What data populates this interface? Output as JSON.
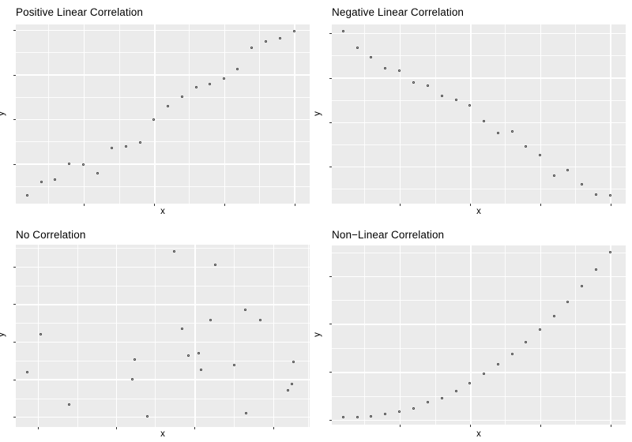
{
  "style": {
    "page_bg": "#FFFFFF",
    "panel_bg": "#EBEBEB",
    "grid_major": "#FFFFFF",
    "grid_minor": "#FFFFFF",
    "point_stroke": "#3A3A3A",
    "tick_color": "#333333",
    "title_color": "#000000"
  },
  "chart_data": [
    {
      "type": "scatter",
      "title": "Positive Linear Correlation",
      "xlabel": "x",
      "ylabel": "y",
      "point_shape": "open-circle",
      "axis_tick_labels": "none",
      "units": "percent of panel, y measured from bottom",
      "points": [
        [
          4.2,
          4.1
        ],
        [
          9.0,
          11.7
        ],
        [
          13.7,
          12.8
        ],
        [
          18.5,
          21.6
        ],
        [
          23.3,
          21.3
        ],
        [
          28.1,
          16.3
        ],
        [
          33.0,
          30.8
        ],
        [
          37.7,
          31.5
        ],
        [
          42.5,
          33.7
        ],
        [
          47.3,
          46.3
        ],
        [
          52.1,
          53.8
        ],
        [
          56.8,
          59.1
        ],
        [
          61.6,
          64.7
        ],
        [
          66.3,
          66.3
        ],
        [
          71.1,
          69.3
        ],
        [
          75.8,
          74.5
        ],
        [
          80.6,
          86.4
        ],
        [
          85.4,
          90.3
        ],
        [
          90.1,
          91.8
        ],
        [
          94.9,
          96.0
        ]
      ],
      "grid": {
        "x_major": [
          23.3,
          47.3,
          71.1,
          94.9
        ],
        "x_minor": [
          11.2,
          35.4,
          59.1,
          83.0
        ],
        "y_major": [
          96.8,
          71.8,
          46.9,
          22.0
        ],
        "y_minor": [
          84.3,
          59.4,
          34.5,
          9.5
        ]
      }
    },
    {
      "type": "scatter",
      "title": "Negative Linear Correlation",
      "xlabel": "x",
      "ylabel": "y",
      "point_shape": "open-circle",
      "axis_tick_labels": "none",
      "units": "percent of panel, y measured from bottom",
      "points": [
        [
          4.2,
          96.0
        ],
        [
          9.0,
          86.6
        ],
        [
          13.7,
          81.2
        ],
        [
          18.5,
          75.0
        ],
        [
          23.3,
          74.0
        ],
        [
          28.1,
          67.1
        ],
        [
          32.9,
          65.3
        ],
        [
          37.7,
          59.7
        ],
        [
          42.5,
          57.5
        ],
        [
          47.3,
          54.6
        ],
        [
          52.1,
          45.6
        ],
        [
          56.8,
          39.2
        ],
        [
          61.6,
          39.9
        ],
        [
          66.3,
          31.7
        ],
        [
          71.2,
          26.6
        ],
        [
          75.9,
          15.4
        ],
        [
          80.6,
          18.5
        ],
        [
          85.4,
          10.3
        ],
        [
          90.1,
          4.5
        ],
        [
          94.9,
          4.0
        ]
      ],
      "grid": {
        "x_major": [
          23.3,
          47.3,
          71.1,
          94.9
        ],
        "x_minor": [
          11.2,
          35.4,
          59.1,
          83.0
        ],
        "y_major": [
          95.0,
          70.0,
          45.2,
          20.5
        ],
        "y_minor": [
          82.5,
          57.6,
          32.9,
          8.1
        ]
      }
    },
    {
      "type": "scatter",
      "title": "No Correlation",
      "xlabel": "x",
      "ylabel": "y",
      "point_shape": "open-circle",
      "axis_tick_labels": "none",
      "units": "percent of panel, y measured from bottom",
      "points": [
        [
          4.2,
          29.8
        ],
        [
          8.8,
          50.6
        ],
        [
          18.4,
          11.9
        ],
        [
          39.9,
          25.8
        ],
        [
          40.7,
          36.4
        ],
        [
          45.1,
          5.2
        ],
        [
          54.2,
          95.8
        ],
        [
          56.9,
          53.3
        ],
        [
          59.0,
          38.6
        ],
        [
          62.4,
          40.1
        ],
        [
          63.4,
          30.8
        ],
        [
          66.6,
          58.2
        ],
        [
          68.2,
          88.4
        ],
        [
          74.7,
          33.4
        ],
        [
          78.3,
          63.9
        ],
        [
          78.5,
          7.1
        ],
        [
          83.4,
          58.2
        ],
        [
          92.8,
          19.5
        ],
        [
          94.1,
          23.1
        ],
        [
          94.7,
          35.4
        ]
      ],
      "grid": {
        "x_major": [
          7.7,
          34.3,
          61.0,
          87.8
        ],
        "x_minor": [
          21.0,
          47.5,
          74.2,
          99.6
        ],
        "y_major": [
          87.7,
          67.1,
          46.6,
          25.9,
          5.4
        ],
        "y_minor": [
          98.0,
          77.4,
          56.8,
          36.2,
          15.6
        ]
      }
    },
    {
      "type": "scatter",
      "title": "Non−Linear Correlation",
      "xlabel": "x",
      "ylabel": "y",
      "point_shape": "open-circle",
      "axis_tick_labels": "none",
      "units": "percent of panel, y measured from bottom",
      "points": [
        [
          4.2,
          3.7
        ],
        [
          9.0,
          3.7
        ],
        [
          13.7,
          4.1
        ],
        [
          18.5,
          5.3
        ],
        [
          23.3,
          6.8
        ],
        [
          28.1,
          8.8
        ],
        [
          32.9,
          12.0
        ],
        [
          37.7,
          14.5
        ],
        [
          42.5,
          18.3
        ],
        [
          47.3,
          22.6
        ],
        [
          52.1,
          28.0
        ],
        [
          56.8,
          33.2
        ],
        [
          61.6,
          39.1
        ],
        [
          66.3,
          45.7
        ],
        [
          71.2,
          52.7
        ],
        [
          75.9,
          60.2
        ],
        [
          80.6,
          68.0
        ],
        [
          85.4,
          76.8
        ],
        [
          90.1,
          86.1
        ],
        [
          94.9,
          95.9
        ]
      ],
      "grid": {
        "x_major": [
          23.3,
          47.3,
          71.1,
          94.9
        ],
        "x_minor": [
          11.2,
          35.4,
          59.1,
          83.0
        ],
        "y_major": [
          82.5,
          56.0,
          29.1,
          2.4
        ],
        "y_minor": [
          95.8,
          69.3,
          42.6,
          15.7
        ]
      }
    }
  ]
}
